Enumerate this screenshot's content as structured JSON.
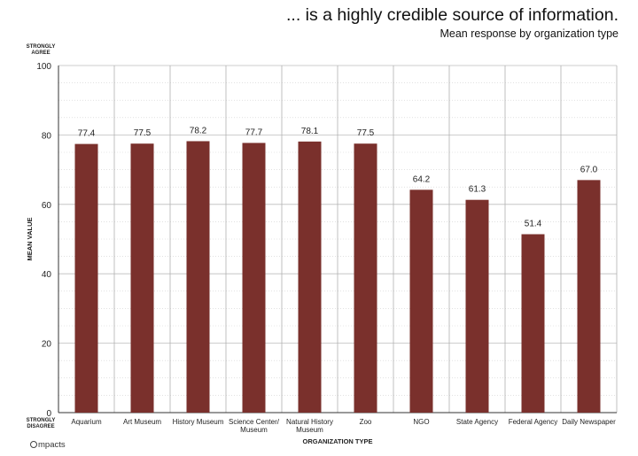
{
  "title": "... is a highly credible source of information.",
  "subtitle": "Mean response by organization type",
  "brand": "mpacts",
  "chart_data": {
    "type": "bar",
    "title": "... is a highly credible source of information.",
    "subtitle": "Mean response by organization type",
    "xlabel": "ORGANIZATION TYPE",
    "ylabel": "MEAN VALUE",
    "ylim": [
      0,
      100
    ],
    "yticks": [
      0,
      20,
      40,
      60,
      80,
      100
    ],
    "y_top_anchor": [
      "STRONGLY",
      "AGREE"
    ],
    "y_bottom_anchor": [
      "STRONGLY",
      "DISAGREE"
    ],
    "categories": [
      [
        "Aquarium"
      ],
      [
        "Art Museum"
      ],
      [
        "History Museum"
      ],
      [
        "Science Center/",
        "Museum"
      ],
      [
        "Natural History",
        "Museum"
      ],
      [
        "Zoo"
      ],
      [
        "NGO"
      ],
      [
        "State Agency"
      ],
      [
        "Federal Agency"
      ],
      [
        "Daily Newspaper"
      ]
    ],
    "values": [
      77.4,
      77.5,
      78.2,
      77.7,
      78.1,
      77.5,
      64.2,
      61.3,
      51.4,
      67.0
    ],
    "value_labels": [
      "77.4",
      "77.5",
      "78.2",
      "77.7",
      "78.1",
      "77.5",
      "64.2",
      "61.3",
      "51.4",
      "67.0"
    ],
    "bar_color": "#7a302c",
    "grid": true
  }
}
